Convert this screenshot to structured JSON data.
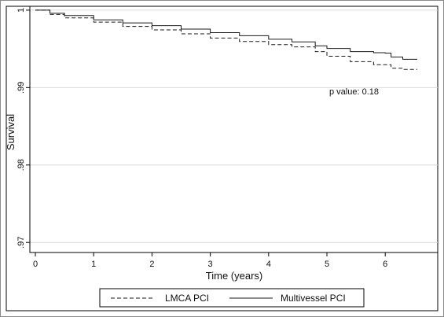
{
  "chart_data": {
    "type": "line",
    "xlabel": "Time (years)",
    "ylabel": "Survival",
    "xlim": [
      0,
      6.9
    ],
    "ylim": [
      0.9687,
      1.0005
    ],
    "xticks": [
      0,
      1,
      2,
      3,
      4,
      5,
      6
    ],
    "xtick_labels": [
      "0",
      "1",
      "2",
      "3",
      "4",
      "5",
      "6"
    ],
    "yticks": [
      0.97,
      0.98,
      0.99,
      1
    ],
    "ytick_labels": [
      ".97",
      ".98",
      ".99",
      "1"
    ],
    "grid": "horizontal",
    "legend_position": "bottom",
    "annotation": "p value: 0.18",
    "series": [
      {
        "name": "LMCA PCI",
        "style": "dashed",
        "x": [
          0,
          0.25,
          0.5,
          1.0,
          1.5,
          2.0,
          2.5,
          3.0,
          3.5,
          4.0,
          4.4,
          4.8,
          5.0,
          5.4,
          5.8,
          6.1,
          6.3,
          6.55
        ],
        "y": [
          1.0,
          0.99945,
          0.999,
          0.99845,
          0.9979,
          0.99745,
          0.99695,
          0.9964,
          0.99595,
          0.99555,
          0.99525,
          0.99465,
          0.99405,
          0.99335,
          0.99295,
          0.9925,
          0.99235,
          0.99235
        ]
      },
      {
        "name": "Multivessel PCI",
        "style": "solid",
        "x": [
          0,
          0.25,
          0.5,
          1.0,
          1.5,
          2.0,
          2.5,
          3.0,
          3.5,
          4.0,
          4.4,
          4.8,
          5.0,
          5.4,
          5.8,
          6.0,
          6.1,
          6.3,
          6.55
        ],
        "y": [
          1.0,
          0.9996,
          0.9993,
          0.99875,
          0.99835,
          0.998,
          0.99755,
          0.9971,
          0.9967,
          0.99625,
          0.9959,
          0.9954,
          0.99505,
          0.99465,
          0.9945,
          0.99445,
          0.99395,
          0.99365,
          0.99365
        ]
      }
    ],
    "colors": {
      "line": "#1a1a1a",
      "grid": "#d9d9d9",
      "frame": "#000000"
    }
  }
}
